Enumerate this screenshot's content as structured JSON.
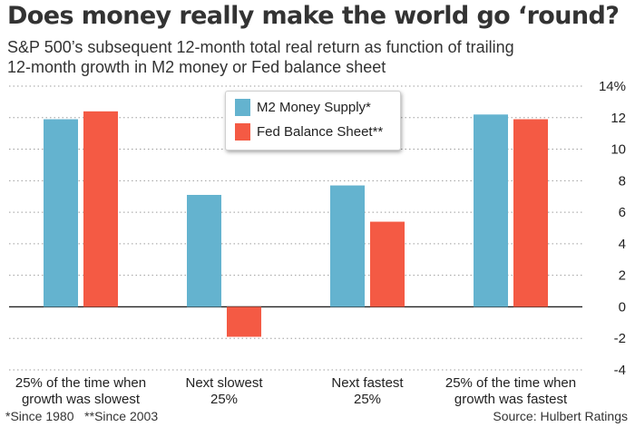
{
  "header": {
    "title": "Does money really make the world go ‘round?",
    "subtitle": "S&P 500’s subsequent 12-month total real return as function of trailing 12-month growth in M2 money or Fed balance sheet"
  },
  "footer": {
    "footnote": "*Since 1980   **Since 2003",
    "source": "Source: Hulbert Ratings"
  },
  "colors": {
    "m2": "#64b3cf",
    "fed": "#f45a44",
    "grid": "#9e9e9e",
    "zero": "#222222",
    "text": "#222222"
  },
  "chart_data": {
    "type": "bar",
    "categories": [
      [
        "25% of the time when",
        "growth was slowest"
      ],
      [
        "Next slowest",
        "25%"
      ],
      [
        "Next fastest",
        "25%"
      ],
      [
        "25% of the time when",
        "growth was fastest"
      ]
    ],
    "series": [
      {
        "name": "M2 Money Supply*",
        "values": [
          11.9,
          7.1,
          7.7,
          12.2
        ]
      },
      {
        "name": "Fed Balance Sheet**",
        "values": [
          12.4,
          -1.9,
          5.4,
          11.9
        ]
      }
    ],
    "ylim": [
      -4,
      14
    ],
    "yticks": [
      -4,
      -2,
      0,
      2,
      4,
      6,
      8,
      10,
      12,
      14
    ],
    "ytick_labels": [
      "-4",
      "-2",
      "0",
      "2",
      "4",
      "6",
      "8",
      "10",
      "12",
      "14%"
    ],
    "y_axis_position": "right",
    "grid": "horizontal dotted",
    "legend_position": "top-center"
  }
}
